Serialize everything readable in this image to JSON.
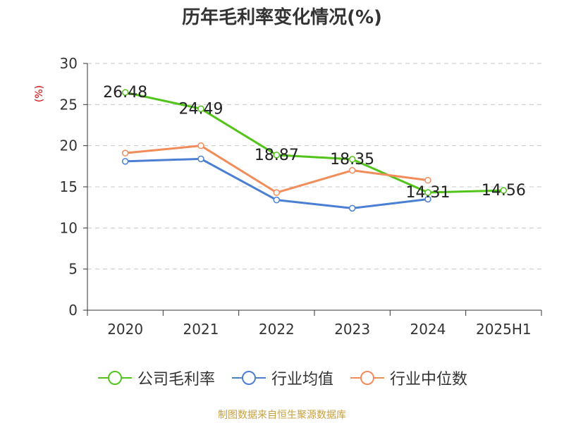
{
  "title": "历年毛利率变化情况(%)",
  "unit_label": "(%)",
  "source": "制图数据来自恒生聚源数据库",
  "chart_data": {
    "type": "line",
    "categories": [
      "2020",
      "2021",
      "2022",
      "2023",
      "2024",
      "2025H1"
    ],
    "ylim": [
      0,
      30
    ],
    "yticks": [
      0,
      5,
      10,
      15,
      20,
      25,
      30
    ],
    "grid": true,
    "legend_position": "bottom",
    "series": [
      {
        "name": "公司毛利率",
        "color": "#52c41a",
        "values": [
          26.48,
          24.49,
          18.87,
          18.35,
          14.31,
          14.56
        ],
        "labels": [
          "26.48",
          "24.49",
          "18.87",
          "18.35",
          "14.31",
          "14.56"
        ]
      },
      {
        "name": "行业均值",
        "color": "#4a7fd4",
        "values": [
          18.1,
          18.4,
          13.4,
          12.4,
          13.5,
          null
        ]
      },
      {
        "name": "行业中位数",
        "color": "#f28c5a",
        "values": [
          19.1,
          20.0,
          14.3,
          17.0,
          15.8,
          null
        ]
      }
    ]
  }
}
